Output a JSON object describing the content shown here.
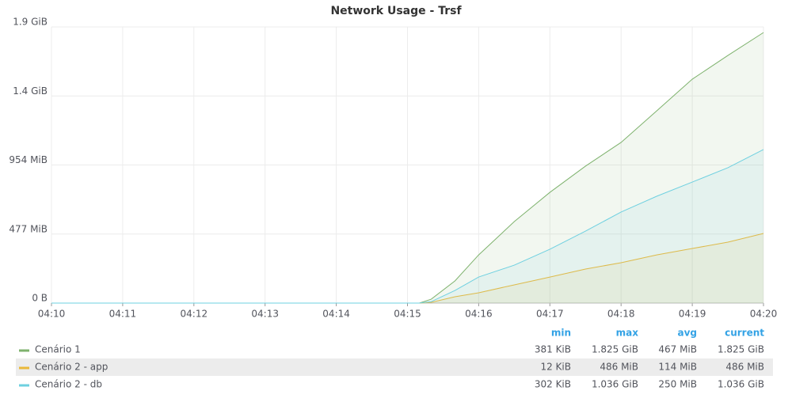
{
  "chart_data": {
    "type": "line",
    "title": "Network Usage - Trsf",
    "x": [
      "04:10",
      "04:15:10",
      "04:15:20",
      "04:15:40",
      "04:16",
      "04:16:30",
      "04:17",
      "04:17:30",
      "04:18",
      "04:18:30",
      "04:19",
      "04:19:30",
      "04:20"
    ],
    "xlim": [
      "04:10",
      "04:20"
    ],
    "xticks": [
      "04:10",
      "04:11",
      "04:12",
      "04:13",
      "04:14",
      "04:15",
      "04:16",
      "04:17",
      "04:18",
      "04:19",
      "04:20"
    ],
    "ylim": [
      0,
      1908
    ],
    "yticks": [
      {
        "value": 0,
        "label": "0 B"
      },
      {
        "value": 477,
        "label": "477 MiB"
      },
      {
        "value": 954,
        "label": "954 MiB"
      },
      {
        "value": 1431,
        "label": "1.4 GiB"
      },
      {
        "value": 1908,
        "label": "1.9 GiB"
      }
    ],
    "grid": true,
    "fill_area": true,
    "legend_columns": [
      "min",
      "max",
      "avg",
      "current"
    ],
    "series": [
      {
        "name": "Cenário 1",
        "color": "#7eb26d",
        "values": [
          0,
          0,
          27,
          153,
          333,
          563,
          765,
          946,
          1110,
          1328,
          1547,
          1711,
          1869
        ],
        "stats": [
          "381 KiB",
          "1.825 GiB",
          "467 MiB",
          "1.825 GiB"
        ]
      },
      {
        "name": "Cenário 2 - app",
        "color": "#eab839",
        "values": [
          0,
          0,
          5,
          44,
          71,
          126,
          180,
          235,
          279,
          333,
          377,
          421,
          481
        ],
        "stats": [
          "12 KiB",
          "486 MiB",
          "114 MiB",
          "486 MiB"
        ]
      },
      {
        "name": "Cenário 2 - db",
        "color": "#6ed0e0",
        "values": [
          0,
          0,
          10,
          87,
          180,
          262,
          372,
          497,
          629,
          738,
          836,
          935,
          1061
        ],
        "stats": [
          "302 KiB",
          "1.036 GiB",
          "250 MiB",
          "1.036 GiB"
        ]
      }
    ]
  }
}
